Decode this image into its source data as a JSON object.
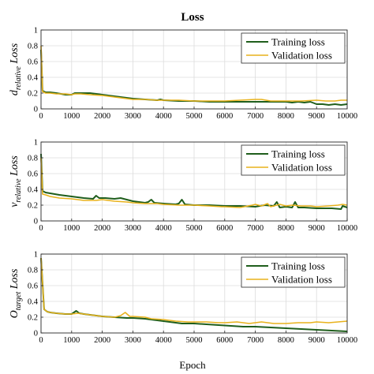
{
  "figure": {
    "title": "Loss",
    "xlabel": "Epoch"
  },
  "colors": {
    "training": "#1f5e1c",
    "validation": "#e8b21c"
  },
  "chart_data": [
    {
      "type": "line",
      "ylabel": {
        "main": "d",
        "sub": "relative",
        "suffix": "Loss"
      },
      "xlim": [
        0,
        10000
      ],
      "ylim": [
        0,
        1
      ],
      "xticks": [
        0,
        1000,
        2000,
        3000,
        4000,
        5000,
        6000,
        7000,
        8000,
        9000,
        10000
      ],
      "yticks": [
        0,
        0.2,
        0.4,
        0.6,
        0.8,
        1
      ],
      "grid": true,
      "legend": "top-right",
      "series": [
        {
          "name": "Training loss",
          "x": [
            0,
            50,
            150,
            300,
            500,
            800,
            1000,
            1100,
            1300,
            1600,
            2000,
            2400,
            2800,
            3000,
            3400,
            3800,
            3900,
            4000,
            4500,
            5000,
            5500,
            6000,
            6500,
            7000,
            7500,
            8000,
            8200,
            8400,
            8600,
            8800,
            9000,
            9200,
            9400,
            9600,
            9800,
            10000
          ],
          "values": [
            0.75,
            0.23,
            0.21,
            0.21,
            0.2,
            0.18,
            0.18,
            0.2,
            0.2,
            0.2,
            0.18,
            0.16,
            0.14,
            0.13,
            0.12,
            0.11,
            0.12,
            0.11,
            0.1,
            0.1,
            0.09,
            0.09,
            0.09,
            0.09,
            0.09,
            0.09,
            0.08,
            0.09,
            0.08,
            0.09,
            0.06,
            0.06,
            0.05,
            0.06,
            0.05,
            0.06
          ]
        },
        {
          "name": "Validation loss",
          "x": [
            0,
            50,
            150,
            300,
            500,
            800,
            1000,
            1100,
            1300,
            1600,
            2000,
            2400,
            2800,
            3000,
            3400,
            3800,
            4000,
            4500,
            5000,
            5500,
            6000,
            6500,
            7000,
            7200,
            7500,
            8000,
            8500,
            9000,
            9300,
            9600,
            9800,
            10000
          ],
          "values": [
            0.8,
            0.22,
            0.2,
            0.2,
            0.19,
            0.19,
            0.18,
            0.19,
            0.19,
            0.18,
            0.17,
            0.15,
            0.13,
            0.12,
            0.12,
            0.11,
            0.11,
            0.11,
            0.1,
            0.1,
            0.1,
            0.11,
            0.12,
            0.12,
            0.1,
            0.1,
            0.1,
            0.11,
            0.1,
            0.1,
            0.11,
            0.11
          ]
        }
      ]
    },
    {
      "type": "line",
      "ylabel": {
        "main": "v",
        "sub": "relative",
        "suffix": "Loss"
      },
      "xlim": [
        0,
        10000
      ],
      "ylim": [
        0,
        1
      ],
      "xticks": [
        0,
        1000,
        2000,
        3000,
        4000,
        5000,
        6000,
        7000,
        8000,
        9000,
        10000
      ],
      "yticks": [
        0,
        0.2,
        0.4,
        0.6,
        0.8,
        1
      ],
      "grid": true,
      "legend": "top-right",
      "series": [
        {
          "name": "Training loss",
          "x": [
            0,
            50,
            150,
            300,
            600,
            1000,
            1400,
            1700,
            1800,
            1900,
            2100,
            2400,
            2600,
            3000,
            3200,
            3400,
            3500,
            3600,
            3700,
            4000,
            4400,
            4500,
            4600,
            4700,
            5000,
            5500,
            6000,
            6500,
            7000,
            7300,
            7600,
            7700,
            7800,
            8000,
            8200,
            8300,
            8400,
            8600,
            9000,
            9500,
            9800,
            9850,
            10000
          ],
          "values": [
            0.85,
            0.38,
            0.36,
            0.35,
            0.33,
            0.31,
            0.29,
            0.28,
            0.32,
            0.29,
            0.29,
            0.28,
            0.29,
            0.25,
            0.24,
            0.23,
            0.24,
            0.27,
            0.23,
            0.22,
            0.21,
            0.22,
            0.27,
            0.21,
            0.2,
            0.2,
            0.19,
            0.19,
            0.18,
            0.2,
            0.19,
            0.24,
            0.17,
            0.18,
            0.17,
            0.24,
            0.17,
            0.17,
            0.16,
            0.16,
            0.15,
            0.19,
            0.17
          ]
        },
        {
          "name": "Validation loss",
          "x": [
            0,
            50,
            150,
            300,
            600,
            1000,
            1400,
            1800,
            2000,
            2400,
            2800,
            3000,
            3400,
            3800,
            4000,
            4500,
            5000,
            5500,
            5900,
            6000,
            6500,
            6900,
            7000,
            7200,
            7400,
            7500,
            7700,
            7800,
            8000,
            8200,
            8500,
            8800,
            9000,
            9400,
            9700,
            9850,
            10000
          ],
          "values": [
            0.8,
            0.34,
            0.33,
            0.31,
            0.29,
            0.28,
            0.26,
            0.26,
            0.27,
            0.25,
            0.24,
            0.23,
            0.22,
            0.22,
            0.21,
            0.2,
            0.2,
            0.19,
            0.18,
            0.18,
            0.17,
            0.2,
            0.21,
            0.19,
            0.22,
            0.18,
            0.2,
            0.21,
            0.19,
            0.2,
            0.19,
            0.19,
            0.18,
            0.19,
            0.2,
            0.21,
            0.2
          ]
        }
      ]
    },
    {
      "type": "line",
      "ylabel": {
        "main": "O",
        "sub": "target",
        "suffix": "Loss"
      },
      "xlim": [
        0,
        10000
      ],
      "ylim": [
        0,
        1
      ],
      "xticks": [
        0,
        1000,
        2000,
        3000,
        4000,
        5000,
        6000,
        7000,
        8000,
        9000,
        10000
      ],
      "yticks": [
        0,
        0.2,
        0.4,
        0.6,
        0.8,
        1
      ],
      "grid": true,
      "legend": "top-right",
      "series": [
        {
          "name": "Training loss",
          "x": [
            0,
            100,
            200,
            300,
            500,
            800,
            1000,
            1150,
            1250,
            1400,
            1600,
            2000,
            2400,
            2800,
            3000,
            3400,
            3800,
            4200,
            4600,
            5000,
            5400,
            5800,
            6200,
            6600,
            7000,
            7500,
            8000,
            8500,
            9000,
            9500,
            10000
          ],
          "values": [
            0.95,
            0.3,
            0.27,
            0.26,
            0.25,
            0.24,
            0.24,
            0.28,
            0.25,
            0.24,
            0.23,
            0.21,
            0.2,
            0.19,
            0.19,
            0.18,
            0.16,
            0.14,
            0.12,
            0.12,
            0.11,
            0.1,
            0.09,
            0.08,
            0.08,
            0.07,
            0.06,
            0.05,
            0.04,
            0.03,
            0.02
          ]
        },
        {
          "name": "Validation loss",
          "x": [
            0,
            100,
            200,
            300,
            500,
            800,
            1000,
            1200,
            1400,
            1600,
            2000,
            2400,
            2600,
            2750,
            2900,
            3000,
            3400,
            3600,
            4000,
            4400,
            4800,
            5000,
            5400,
            5800,
            6000,
            6400,
            6800,
            7000,
            7200,
            7600,
            8000,
            8400,
            8800,
            9000,
            9400,
            9700,
            10000
          ],
          "values": [
            0.95,
            0.3,
            0.27,
            0.26,
            0.25,
            0.24,
            0.24,
            0.25,
            0.24,
            0.23,
            0.21,
            0.2,
            0.22,
            0.26,
            0.21,
            0.21,
            0.2,
            0.18,
            0.17,
            0.15,
            0.14,
            0.14,
            0.14,
            0.13,
            0.13,
            0.14,
            0.12,
            0.13,
            0.14,
            0.12,
            0.12,
            0.13,
            0.13,
            0.14,
            0.13,
            0.14,
            0.15
          ]
        }
      ]
    }
  ]
}
